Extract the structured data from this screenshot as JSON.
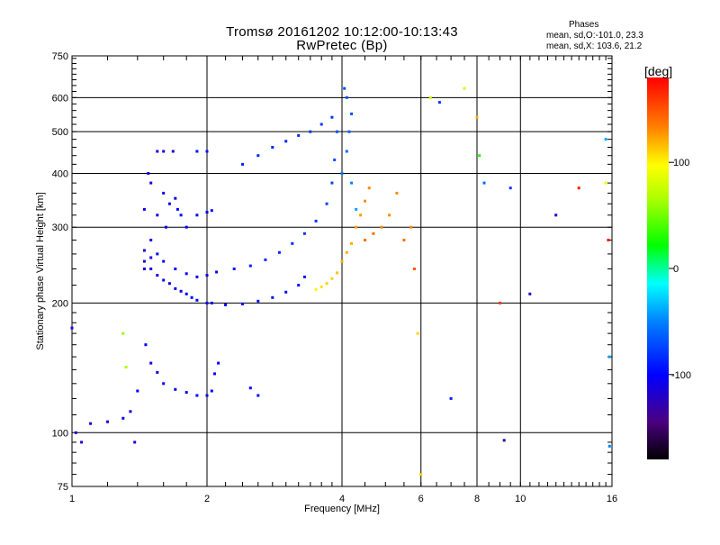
{
  "title": "Tromsø 20161202 10:12:00-10:13:43",
  "subtitle": "RwPretec (Bp)",
  "phases": {
    "title": "Phases",
    "o_line": "mean, sd,O:-101.0, 23.3",
    "x_line": "mean, sd,X: 103.6, 21.2"
  },
  "colorbar": {
    "unit": "[deg]",
    "ticks": [
      {
        "value": 100,
        "label": "100"
      },
      {
        "value": 0,
        "label": "0"
      },
      {
        "value": -100,
        "label": "-100"
      }
    ],
    "range": [
      -180,
      180
    ]
  },
  "chart_data": {
    "type": "scatter",
    "xlabel": "Frequency [MHz]",
    "ylabel": "Stationary phase Virtual Height [km]",
    "xscale": "log",
    "yscale": "log",
    "xlim": [
      1,
      16
    ],
    "ylim": [
      75,
      750
    ],
    "x_ticks": [
      {
        "value": 1,
        "label": "1"
      },
      {
        "value": 2,
        "label": "2"
      },
      {
        "value": 4,
        "label": "4"
      },
      {
        "value": 6,
        "label": "6"
      },
      {
        "value": 8,
        "label": "8"
      },
      {
        "value": 10,
        "label": "10"
      },
      {
        "value": 16,
        "label": "16"
      }
    ],
    "y_ticks": [
      {
        "value": 75,
        "label": "75"
      },
      {
        "value": 100,
        "label": "100"
      },
      {
        "value": 200,
        "label": "200"
      },
      {
        "value": 300,
        "label": "300"
      },
      {
        "value": 400,
        "label": "400"
      },
      {
        "value": 500,
        "label": "500"
      },
      {
        "value": 600,
        "label": "600"
      },
      {
        "value": 750,
        "label": "750"
      }
    ],
    "grid": true,
    "points": [
      [
        1.0,
        175,
        -120
      ],
      [
        1.02,
        100,
        -115
      ],
      [
        1.05,
        95,
        -115
      ],
      [
        1.1,
        105,
        -110
      ],
      [
        1.2,
        106,
        -110
      ],
      [
        1.3,
        108,
        -105
      ],
      [
        1.35,
        112,
        -110
      ],
      [
        1.38,
        95,
        -110
      ],
      [
        1.4,
        125,
        -105
      ],
      [
        1.3,
        170,
        60
      ],
      [
        1.32,
        142,
        65
      ],
      [
        1.45,
        250,
        -110
      ],
      [
        1.45,
        330,
        -110
      ],
      [
        1.46,
        160,
        -105
      ],
      [
        1.48,
        400,
        -110
      ],
      [
        1.5,
        280,
        -105
      ],
      [
        1.5,
        380,
        -110
      ],
      [
        1.55,
        320,
        -105
      ],
      [
        1.55,
        450,
        -110
      ],
      [
        1.6,
        360,
        -110
      ],
      [
        1.62,
        300,
        -105
      ],
      [
        1.65,
        340,
        -100
      ],
      [
        1.68,
        450,
        -110
      ],
      [
        1.7,
        350,
        -105
      ],
      [
        1.72,
        330,
        -100
      ],
      [
        1.6,
        450,
        -110
      ],
      [
        1.75,
        320,
        -100
      ],
      [
        1.45,
        265,
        -115
      ],
      [
        1.5,
        240,
        -110
      ],
      [
        1.55,
        232,
        -110
      ],
      [
        1.6,
        226,
        -105
      ],
      [
        1.65,
        222,
        -105
      ],
      [
        1.7,
        216,
        -100
      ],
      [
        1.75,
        213,
        -105
      ],
      [
        1.8,
        210,
        -100
      ],
      [
        1.85,
        206,
        -100
      ],
      [
        1.9,
        203,
        -100
      ],
      [
        2.0,
        200,
        -105
      ],
      [
        2.05,
        200,
        -100
      ],
      [
        1.45,
        240,
        -110
      ],
      [
        1.5,
        255,
        -110
      ],
      [
        1.55,
        260,
        -105
      ],
      [
        1.6,
        250,
        -105
      ],
      [
        1.7,
        240,
        -100
      ],
      [
        1.8,
        234,
        -100
      ],
      [
        1.9,
        230,
        -105
      ],
      [
        2.0,
        232,
        -105
      ],
      [
        2.1,
        236,
        -100
      ],
      [
        1.5,
        145,
        -110
      ],
      [
        1.55,
        138,
        -110
      ],
      [
        1.6,
        130,
        -105
      ],
      [
        1.7,
        126,
        -105
      ],
      [
        1.8,
        124,
        -100
      ],
      [
        1.9,
        122,
        -100
      ],
      [
        2.0,
        122,
        -105
      ],
      [
        2.05,
        125,
        -100
      ],
      [
        2.08,
        137,
        -100
      ],
      [
        2.12,
        145,
        -100
      ],
      [
        2.5,
        127,
        -100
      ],
      [
        2.6,
        122,
        -100
      ],
      [
        1.8,
        300,
        -100
      ],
      [
        1.9,
        320,
        -100
      ],
      [
        2.0,
        325,
        -100
      ],
      [
        2.05,
        328,
        -95
      ],
      [
        1.9,
        450,
        -95
      ],
      [
        2.0,
        450,
        -95
      ],
      [
        2.2,
        198,
        -100
      ],
      [
        2.4,
        199,
        -100
      ],
      [
        2.6,
        202,
        -95
      ],
      [
        2.8,
        206,
        -95
      ],
      [
        3.0,
        212,
        -95
      ],
      [
        3.2,
        220,
        -95
      ],
      [
        3.3,
        230,
        -95
      ],
      [
        2.3,
        240,
        -90
      ],
      [
        2.5,
        244,
        -90
      ],
      [
        2.7,
        252,
        -85
      ],
      [
        2.9,
        262,
        -85
      ],
      [
        3.1,
        275,
        -85
      ],
      [
        3.3,
        290,
        -80
      ],
      [
        3.5,
        310,
        -80
      ],
      [
        3.7,
        340,
        -75
      ],
      [
        3.8,
        380,
        -75
      ],
      [
        3.85,
        430,
        -70
      ],
      [
        3.9,
        500,
        -70
      ],
      [
        2.4,
        420,
        -85
      ],
      [
        2.6,
        440,
        -85
      ],
      [
        2.8,
        460,
        -85
      ],
      [
        3.0,
        475,
        -85
      ],
      [
        3.2,
        490,
        -85
      ],
      [
        3.4,
        500,
        -80
      ],
      [
        3.6,
        520,
        -80
      ],
      [
        3.8,
        540,
        -80
      ],
      [
        3.5,
        215,
        100
      ],
      [
        3.6,
        218,
        105
      ],
      [
        3.7,
        222,
        110
      ],
      [
        3.8,
        228,
        110
      ],
      [
        3.9,
        235,
        115
      ],
      [
        4.0,
        250,
        120
      ],
      [
        4.1,
        262,
        120
      ],
      [
        4.2,
        275,
        120
      ],
      [
        4.3,
        300,
        125
      ],
      [
        4.4,
        320,
        125
      ],
      [
        4.5,
        345,
        130
      ],
      [
        4.6,
        370,
        130
      ],
      [
        4.05,
        630,
        -70
      ],
      [
        4.1,
        600,
        -70
      ],
      [
        4.2,
        550,
        -70
      ],
      [
        4.15,
        500,
        -65
      ],
      [
        4.1,
        450,
        -60
      ],
      [
        4.0,
        400,
        -55
      ],
      [
        4.2,
        380,
        -50
      ],
      [
        4.3,
        330,
        -40
      ],
      [
        4.5,
        280,
        140
      ],
      [
        4.7,
        290,
        140
      ],
      [
        4.9,
        300,
        130
      ],
      [
        5.1,
        320,
        130
      ],
      [
        5.3,
        360,
        130
      ],
      [
        5.5,
        280,
        140
      ],
      [
        5.7,
        300,
        130
      ],
      [
        5.8,
        240,
        150
      ],
      [
        5.9,
        170,
        110
      ],
      [
        6.0,
        80,
        110
      ],
      [
        6.3,
        600,
        80
      ],
      [
        6.6,
        585,
        -80
      ],
      [
        7.0,
        120,
        -90
      ],
      [
        7.5,
        630,
        80
      ],
      [
        8.0,
        540,
        120
      ],
      [
        8.1,
        440,
        30
      ],
      [
        8.3,
        380,
        -60
      ],
      [
        9.0,
        200,
        160
      ],
      [
        9.2,
        96,
        -130
      ],
      [
        9.5,
        370,
        -80
      ],
      [
        10.5,
        210,
        -120
      ],
      [
        12.0,
        320,
        -110
      ],
      [
        13.5,
        370,
        170
      ],
      [
        15.5,
        480,
        -40
      ],
      [
        15.8,
        93,
        -50
      ],
      [
        15.8,
        150,
        -40
      ],
      [
        15.7,
        280,
        170
      ],
      [
        15.5,
        380,
        90
      ]
    ]
  }
}
